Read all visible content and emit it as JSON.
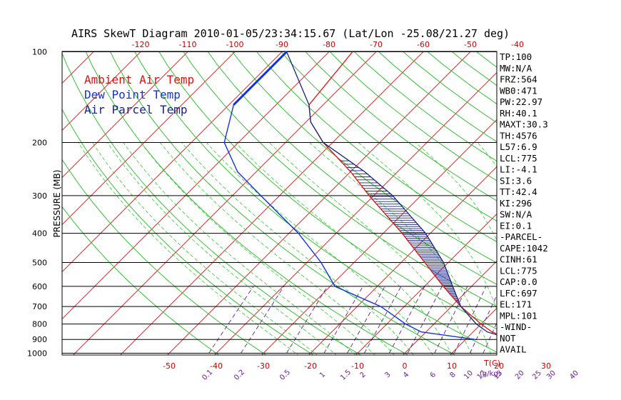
{
  "chart_data": {
    "type": "line",
    "title": "AIRS SkewT Diagram 2010-01-05/23:34:15.67 (Lat/Lon -25.08/21.27 deg)",
    "ylabel": "PRESSURE (MB)",
    "xlabel": "T(C)",
    "mixing_ratio_label": "(g/kg)",
    "pressure_levels": [
      100,
      200,
      300,
      400,
      500,
      600,
      700,
      800,
      900,
      1000
    ],
    "top_temp_ticks": [
      -120,
      -110,
      -100,
      -90,
      -80,
      -70,
      -60,
      -50,
      -40
    ],
    "bottom_temp_ticks": [
      -50,
      -40,
      -30,
      -20,
      -10,
      0,
      10,
      20,
      30
    ],
    "mixing_ratio_ticks": [
      "0.1",
      "0.2",
      "0.5",
      "1",
      "1.5",
      "2",
      "3",
      "4",
      "6",
      "8",
      "10",
      "12",
      "15",
      "20",
      "25",
      "30",
      "40"
    ],
    "legend": [
      "Ambient Air Temp",
      "Dew Point Temp",
      "Air Parcel Temp"
    ],
    "legend_placement": "top-left",
    "series": [
      {
        "name": "Ambient Air Temp",
        "color": "#dd1111",
        "points": [
          {
            "p": 100,
            "t": -75
          },
          {
            "p": 150,
            "t": -73
          },
          {
            "p": 171,
            "t": -69
          },
          {
            "p": 200,
            "t": -62
          },
          {
            "p": 250,
            "t": -50
          },
          {
            "p": 300,
            "t": -41
          },
          {
            "p": 400,
            "t": -26
          },
          {
            "p": 500,
            "t": -15
          },
          {
            "p": 600,
            "t": -6
          },
          {
            "p": 700,
            "t": 2
          },
          {
            "p": 800,
            "t": 10
          },
          {
            "p": 850,
            "t": 14
          },
          {
            "p": 900,
            "t": 20
          }
        ]
      },
      {
        "name": "Dew Point Temp",
        "color": "#1133dd",
        "points": [
          {
            "p": 100,
            "t": -89
          },
          {
            "p": 150,
            "t": -89
          },
          {
            "p": 200,
            "t": -83
          },
          {
            "p": 250,
            "t": -74
          },
          {
            "p": 300,
            "t": -64
          },
          {
            "p": 400,
            "t": -48
          },
          {
            "p": 500,
            "t": -37
          },
          {
            "p": 600,
            "t": -29
          },
          {
            "p": 700,
            "t": -15
          },
          {
            "p": 800,
            "t": -6
          },
          {
            "p": 850,
            "t": -1
          },
          {
            "p": 900,
            "t": 12
          }
        ]
      },
      {
        "name": "Air Parcel Temp",
        "color": "#1a237e",
        "points": [
          {
            "p": 100,
            "t": -89
          },
          {
            "p": 150,
            "t": -73
          },
          {
            "p": 171,
            "t": -69
          },
          {
            "p": 200,
            "t": -62
          },
          {
            "p": 250,
            "t": -47
          },
          {
            "p": 300,
            "t": -36
          },
          {
            "p": 400,
            "t": -21
          },
          {
            "p": 500,
            "t": -11
          },
          {
            "p": 600,
            "t": -4
          },
          {
            "p": 700,
            "t": 2
          },
          {
            "p": 800,
            "t": 9
          },
          {
            "p": 850,
            "t": 13
          },
          {
            "p": 900,
            "t": 20
          }
        ]
      }
    ],
    "wind_profile_shown": false,
    "grid": true,
    "colors": {
      "isotherms": "#dd1111",
      "dry_adiabats": "#22bb22",
      "moist_adiabats": "#33cc33",
      "mixing_ratio": "#6a1b9a",
      "isobars": "#000000",
      "cape_hatch": "#1a237e"
    }
  },
  "indices": [
    "TP:100",
    "MW:N/A",
    "FRZ:564",
    "WB0:471",
    "PW:22.97",
    "RH:40.1",
    "MAXT:30.3",
    "TH:4576",
    "L57:6.9",
    "LCL:775",
    "LI:-4.1",
    "SI:3.6",
    "TT:42.4",
    "KI:296",
    "SW:N/A",
    "EI:0.1",
    "-PARCEL-",
    "CAPE:1042",
    "CINH:61",
    "LCL:775",
    "CAP:0.0",
    "LFC:697",
    "EL:171",
    "MPL:101",
    "-WIND-",
    "NOT",
    "AVAIL"
  ]
}
